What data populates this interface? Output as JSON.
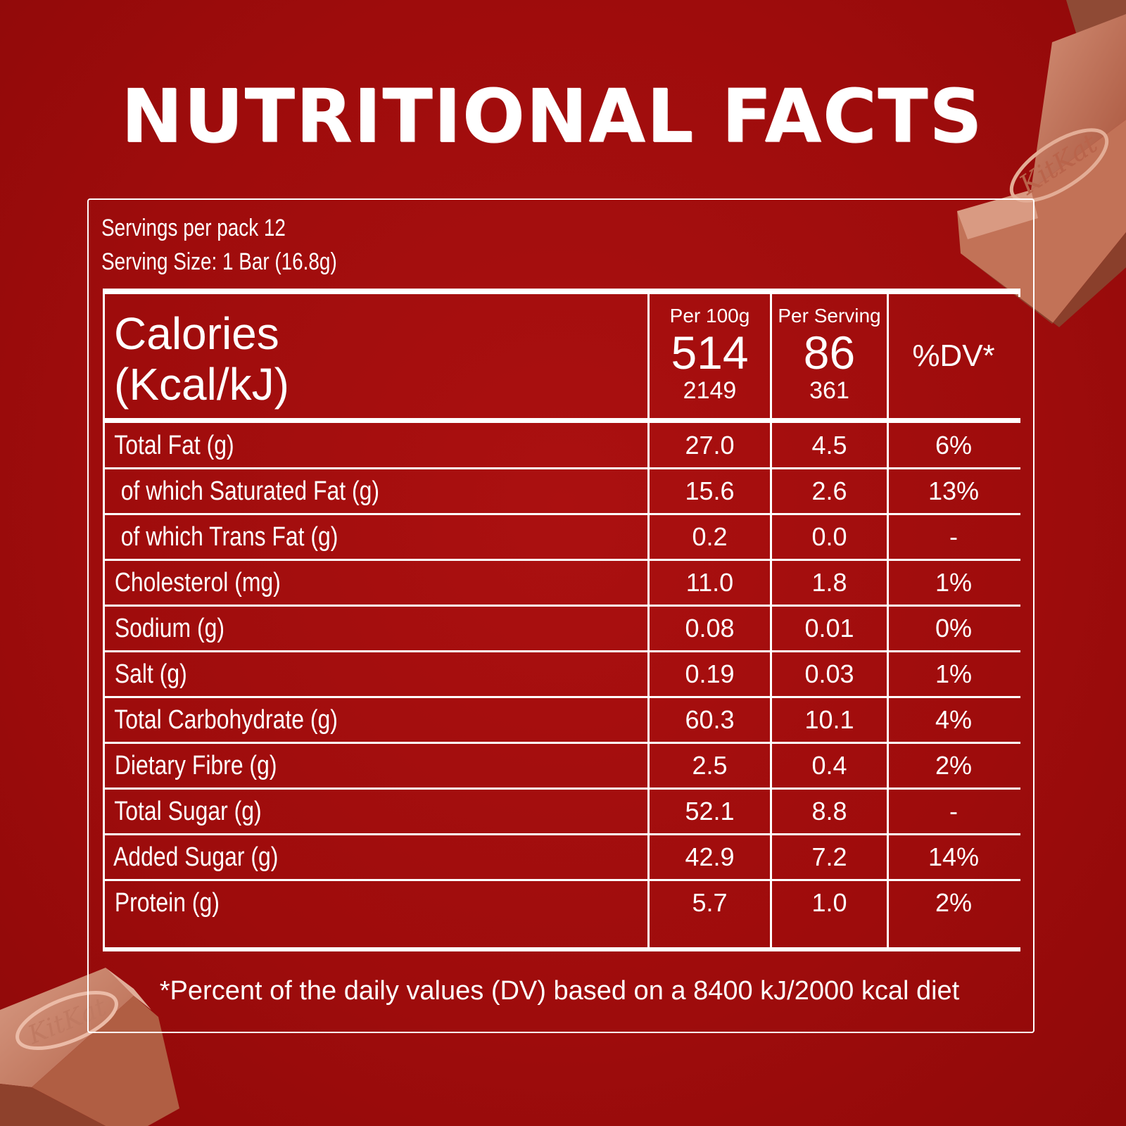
{
  "title": "NUTRITIONAL FACTS",
  "servings_per_pack": "Servings per pack 12",
  "serving_size": "Serving Size: 1 Bar (16.8g)",
  "header": {
    "calories_label_1": "Calories",
    "calories_label_2": "(Kcal/kJ)",
    "per100g_label": "Per 100g",
    "per100g_kcal": "514",
    "per100g_kj": "2149",
    "perserving_label": "Per Serving",
    "perserving_kcal": "86",
    "perserving_kj": "361",
    "dv_label": "%DV*"
  },
  "rows": [
    {
      "name": " Total Fat (g)",
      "per100g": "27.0",
      "perserving": "4.5",
      "dv": "6%"
    },
    {
      "name": "  of which Saturated Fat (g)",
      "per100g": "15.6",
      "perserving": "2.6",
      "dv": "13%"
    },
    {
      "name": "  of which Trans Fat (g)",
      "per100g": "0.2",
      "perserving": "0.0",
      "dv": "-"
    },
    {
      "name": " Cholesterol (mg)",
      "per100g": "11.0",
      "perserving": "1.8",
      "dv": "1%"
    },
    {
      "name": " Sodium (g)",
      "per100g": "0.08",
      "perserving": "0.01",
      "dv": "0%"
    },
    {
      "name": " Salt (g)",
      "per100g": "0.19",
      "perserving": "0.03",
      "dv": "1%"
    },
    {
      "name": " Total Carbohydrate (g)",
      "per100g": "60.3",
      "perserving": "10.1",
      "dv": "4%"
    },
    {
      "name": " Dietary Fibre (g)",
      "per100g": "2.5",
      "perserving": "0.4",
      "dv": "2%"
    },
    {
      "name": " Total Sugar (g)",
      "per100g": "52.1",
      "perserving": "8.8",
      "dv": "-"
    },
    {
      "name": " Added Sugar (g)",
      "per100g": "42.9",
      "perserving": "7.2",
      "dv": "14%"
    },
    {
      "name": " Protein (g)",
      "per100g": "5.7",
      "perserving": "1.0",
      "dv": "2%"
    }
  ],
  "footnote": "*Percent of the daily values (DV) based on a 8400 kJ/2000 kcal diet",
  "logo_text": "KitKat",
  "colors": {
    "background": "#a50d0d",
    "text": "#ffffff",
    "chocolate": "#c77b62"
  }
}
